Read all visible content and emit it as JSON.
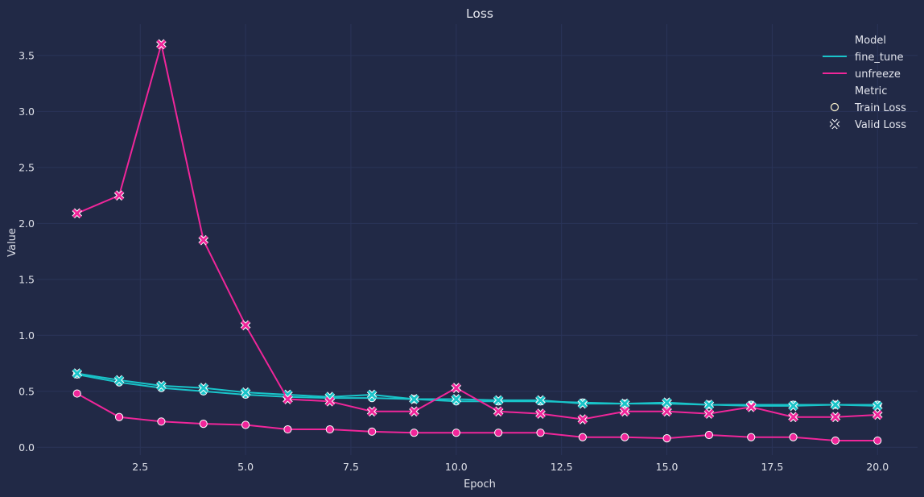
{
  "chart_data": {
    "type": "line",
    "title": "Loss",
    "xlabel": "Epoch",
    "ylabel": "Value",
    "xlim": [
      0.05,
      20.95
    ],
    "ylim": [
      -0.07,
      3.78
    ],
    "xticks": [
      2.5,
      5.0,
      7.5,
      10.0,
      12.5,
      15.0,
      17.5,
      20.0
    ],
    "xtick_labels": [
      "2.5",
      "5.0",
      "7.5",
      "10.0",
      "12.5",
      "15.0",
      "17.5",
      "20.0"
    ],
    "yticks": [
      0.0,
      0.5,
      1.0,
      1.5,
      2.0,
      2.5,
      3.0,
      3.5
    ],
    "ytick_labels": [
      "0.0",
      "0.5",
      "1.0",
      "1.5",
      "2.0",
      "2.5",
      "3.0",
      "3.5"
    ],
    "grid": true,
    "legend_placement": "top-right",
    "legend": {
      "model_title": "Model",
      "metric_title": "Metric",
      "models": [
        {
          "name": "fine_tune",
          "color": "#19c4c9"
        },
        {
          "name": "unfreeze",
          "color": "#f0269a"
        }
      ],
      "metrics": [
        {
          "name": "Train Loss",
          "marker": "circle"
        },
        {
          "name": "Valid Loss",
          "marker": "x"
        }
      ]
    },
    "x": [
      1,
      2,
      3,
      4,
      5,
      6,
      7,
      8,
      9,
      10,
      11,
      12,
      13,
      14,
      15,
      16,
      17,
      18,
      19,
      20
    ],
    "series": [
      {
        "model": "fine_tune",
        "metric": "Train Loss",
        "color": "#19c4c9",
        "marker": "circle",
        "values": [
          0.65,
          0.58,
          0.53,
          0.5,
          0.47,
          0.45,
          0.44,
          0.44,
          0.43,
          0.41,
          0.41,
          0.41,
          0.4,
          0.39,
          0.39,
          0.38,
          0.38,
          0.38,
          0.38,
          0.38
        ]
      },
      {
        "model": "fine_tune",
        "metric": "Valid Loss",
        "color": "#19c4c9",
        "marker": "x",
        "values": [
          0.66,
          0.6,
          0.55,
          0.53,
          0.49,
          0.47,
          0.45,
          0.47,
          0.43,
          0.43,
          0.42,
          0.42,
          0.39,
          0.39,
          0.4,
          0.38,
          0.37,
          0.37,
          0.38,
          0.37
        ]
      },
      {
        "model": "unfreeze",
        "metric": "Train Loss",
        "color": "#f0269a",
        "marker": "circle",
        "values": [
          0.48,
          0.27,
          0.23,
          0.21,
          0.2,
          0.16,
          0.16,
          0.14,
          0.13,
          0.13,
          0.13,
          0.13,
          0.09,
          0.09,
          0.08,
          0.11,
          0.09,
          0.09,
          0.06,
          0.06
        ]
      },
      {
        "model": "unfreeze",
        "metric": "Valid Loss",
        "color": "#f0269a",
        "marker": "x",
        "values": [
          2.09,
          2.25,
          3.6,
          1.85,
          1.09,
          0.43,
          0.41,
          0.32,
          0.32,
          0.53,
          0.32,
          0.3,
          0.25,
          0.32,
          0.32,
          0.3,
          0.36,
          0.27,
          0.27,
          0.29
        ]
      }
    ]
  }
}
